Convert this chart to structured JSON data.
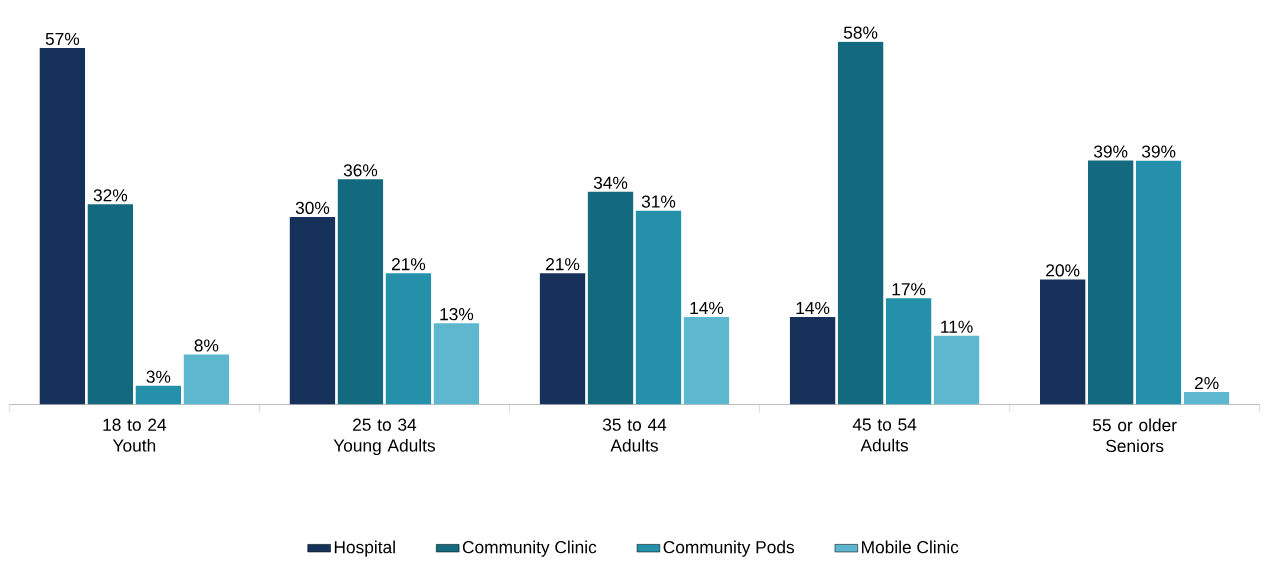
{
  "chart_data": {
    "type": "bar",
    "categories": [
      "18 to 24 Youth",
      "25 to 34 Young Adults",
      "35 to 44 Adults",
      "45 to 54 Adults",
      "55 or older Seniors"
    ],
    "series": [
      {
        "name": "Hospital",
        "color": "#17325a",
        "values": [
          57,
          30,
          21,
          14,
          20
        ],
        "value_labels": [
          "57%",
          "30%",
          "21%",
          "14%",
          "20%"
        ]
      },
      {
        "name": "Community Clinic",
        "color": "#136a7e",
        "values": [
          32,
          36,
          34,
          58,
          39
        ],
        "value_labels": [
          "32%",
          "36%",
          "34%",
          "58%",
          "39%"
        ]
      },
      {
        "name": "Community Pods",
        "color": "#2490aa",
        "values": [
          3,
          21,
          31,
          17,
          39
        ],
        "value_labels": [
          "3%",
          "21%",
          "31%",
          "17%",
          "39%"
        ]
      },
      {
        "name": "Mobile Clinic",
        "color": "#5db7cf",
        "values": [
          8,
          13,
          14,
          11,
          2
        ],
        "value_labels": [
          "8%",
          "13%",
          "14%",
          "11%",
          "2%"
        ]
      }
    ],
    "legend": "bottom"
  }
}
